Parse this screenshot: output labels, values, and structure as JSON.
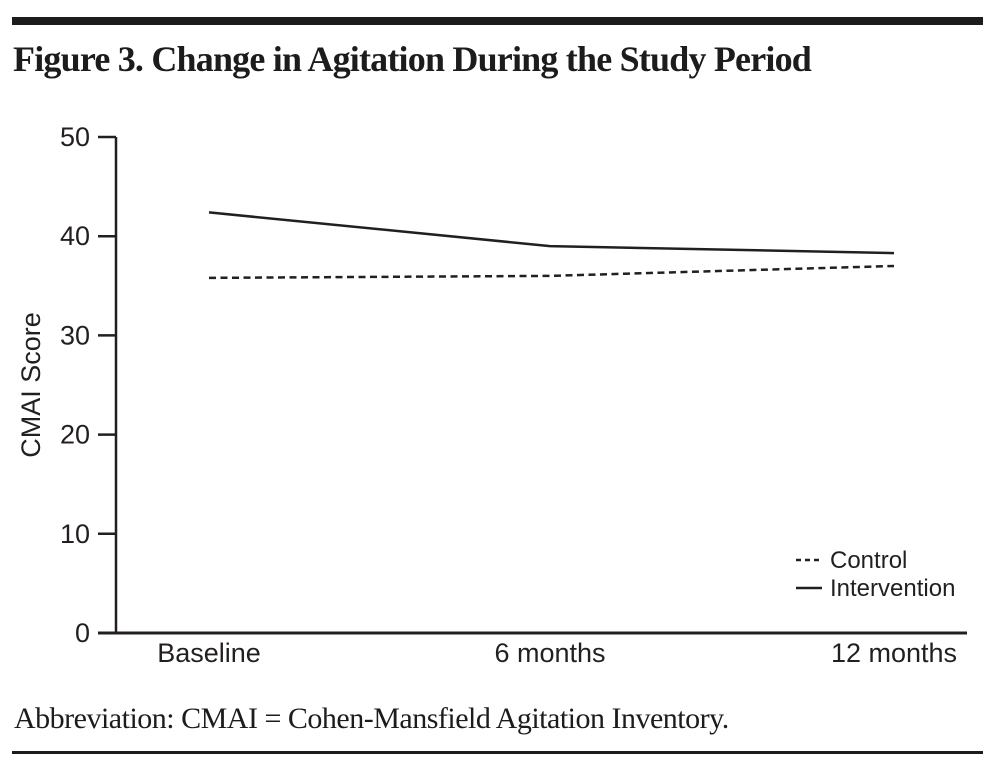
{
  "figure": {
    "title": "Figure 3. Change in Agitation During the Study Period",
    "footnote": "Abbreviation: CMAI = Cohen-Mansfield Agitation Inventory."
  },
  "chart_data": {
    "type": "line",
    "title": "Figure 3. Change in Agitation During the Study Period",
    "categories": [
      "Baseline",
      "6 months",
      "12 months"
    ],
    "series": [
      {
        "name": "Control",
        "style": "dashed",
        "values": [
          35.8,
          36.0,
          37.0
        ]
      },
      {
        "name": "Intervention",
        "style": "solid",
        "values": [
          42.4,
          39.0,
          38.3
        ]
      }
    ],
    "xlabel": "",
    "ylabel": "CMAI Score",
    "ylim": [
      0,
      50
    ],
    "yticks": [
      0,
      10,
      20,
      30,
      40,
      50
    ],
    "grid": false,
    "legend_position": "lower right",
    "line_color": "#231f20"
  }
}
